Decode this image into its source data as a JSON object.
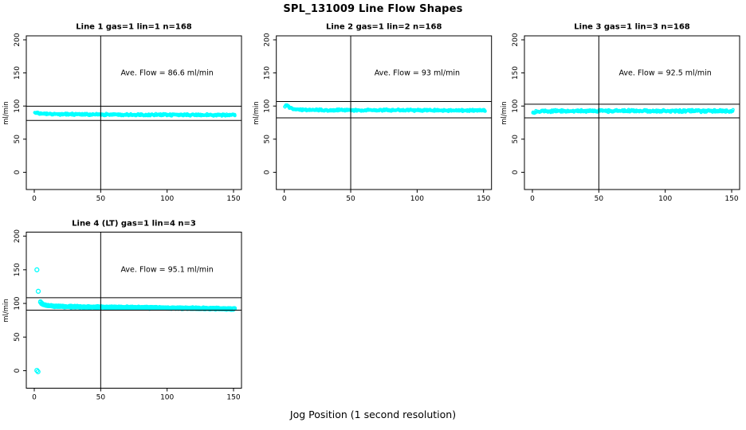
{
  "figure": {
    "title": "SPL_131009  Line Flow Shapes",
    "xlabel": "Jog Position (1 second resolution)"
  },
  "chart_data": {
    "type": "scatter",
    "title": "SPL_131009  Line Flow Shapes",
    "xlabel": "Jog Position (1 second resolution)",
    "ylabel": "ml/min",
    "marker": "open-circle",
    "point_color": "#00ffff",
    "line_color": "#000000",
    "background": "#ffffff",
    "x_ticks": [
      0,
      50,
      100,
      150
    ],
    "y_ticks": [
      0,
      50,
      100,
      150,
      200
    ],
    "xlim": [
      -6,
      156
    ],
    "ylim": [
      -26,
      206
    ],
    "vline_x": 50,
    "panels": [
      {
        "title": "Line 1 gas=1 lin=1 n=168",
        "annotation": "Ave. Flow =  86.6  ml/min",
        "ave_flow_ml_min": 86.6,
        "n_jogs": 168,
        "ref_line_upper": 99.8,
        "ref_line_lower": 78.3,
        "band_center_keypoints": [
          [
            0.5,
            90.2
          ],
          [
            3,
            88.8
          ],
          [
            8,
            88.1
          ],
          [
            30,
            87.4
          ],
          [
            80,
            86.9
          ],
          [
            151,
            86.4
          ]
        ],
        "band_halfwidth": 1.8,
        "outliers": [],
        "grid": [
          0,
          0
        ],
        "x_start": 0.5,
        "x_end": 151,
        "dense": true
      },
      {
        "title": "Line 2 gas=1 lin=2 n=168",
        "annotation": "Ave. Flow =  93  ml/min",
        "ave_flow_ml_min": 93,
        "n_jogs": 168,
        "ref_line_upper": 106.8,
        "ref_line_lower": 82.2,
        "band_center_keypoints": [
          [
            0.5,
            99.5
          ],
          [
            1.5,
            102.5
          ],
          [
            2.5,
            101
          ],
          [
            4,
            97.5
          ],
          [
            6,
            95.8
          ],
          [
            10,
            94.6
          ],
          [
            30,
            93.8
          ],
          [
            151,
            93.3
          ]
        ],
        "band_halfwidth": 1.8,
        "outliers": [],
        "grid": [
          0,
          1
        ],
        "x_start": 0.5,
        "x_end": 151,
        "dense": true
      },
      {
        "title": "Line 3 gas=1 lin=3 n=168",
        "annotation": "Ave. Flow =  92.5  ml/min",
        "ave_flow_ml_min": 92.5,
        "n_jogs": 168,
        "ref_line_upper": 102.8,
        "ref_line_lower": 82.2,
        "band_center_keypoints": [
          [
            0.5,
            90.5
          ],
          [
            4,
            91.8
          ],
          [
            12,
            92.5
          ],
          [
            151,
            92.6
          ]
        ],
        "band_halfwidth": 2.2,
        "outliers": [],
        "grid": [
          0,
          2
        ],
        "x_start": 0.5,
        "x_end": 151,
        "dense": true
      },
      {
        "title": "Line 4 (LT) gas=1 lin=4 n=3",
        "annotation": "Ave. Flow =  95.1  ml/min",
        "ave_flow_ml_min": 95.1,
        "n_jogs": 3,
        "ref_line_upper": 108.5,
        "ref_line_lower": 90,
        "band_center_keypoints": [
          [
            4.5,
            102
          ],
          [
            6,
            99
          ],
          [
            9,
            97
          ],
          [
            15,
            95.8
          ],
          [
            30,
            95
          ],
          [
            60,
            94.2
          ],
          [
            100,
            93.3
          ],
          [
            130,
            92.6
          ],
          [
            151,
            91.8
          ]
        ],
        "band_halfwidth": 0.8,
        "outliers": [
          [
            2,
            150
          ],
          [
            3,
            118
          ],
          [
            2,
            0.5
          ],
          [
            2.8,
            -1.5
          ]
        ],
        "grid": [
          1,
          0
        ],
        "x_start": 4.5,
        "x_end": 151,
        "dense": false
      }
    ]
  }
}
